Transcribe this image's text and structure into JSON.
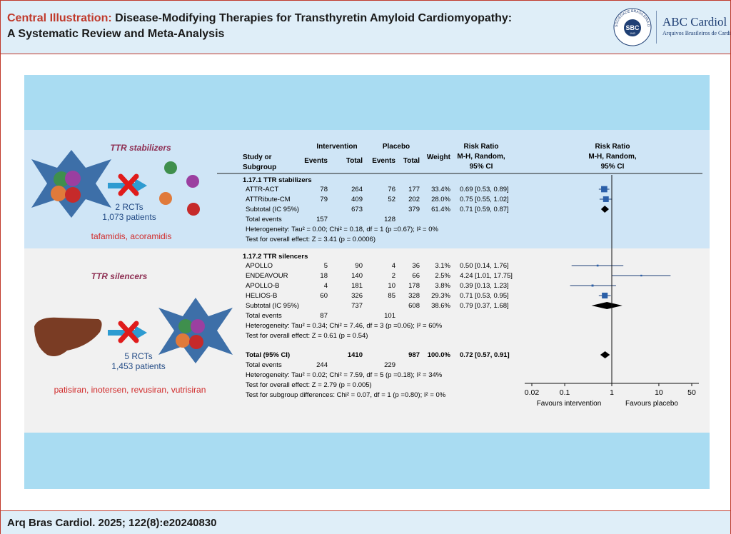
{
  "header": {
    "title_accent": "Central Illustration:",
    "title_line1": "Disease-Modifying Therapies for Transthyretin Amyloid Cardiomyopathy:",
    "title_line2": "A Systematic Review and Meta-Analysis",
    "logo_seal_text": "SBC",
    "logo_seal_ring": "SOCIEDADE BRASILEIRA DE CARDIOLOGIA",
    "logo_seal_year": "1943",
    "logo_title": "ABC Cardiol",
    "logo_subtitle": "Arquivos Brasileiros de Cardiologia"
  },
  "footer": {
    "citation": "Arq Bras Cardiol. 2025; 122(8):e20240830"
  },
  "left_panels": {
    "stabilizers": {
      "title": "TTR stabilizers",
      "rcts": "2 RCTs",
      "patients": "1,073 patients",
      "drugs": "tafamidis, acoramidis"
    },
    "silencers": {
      "title": "TTR silencers",
      "rcts": "5 RCTs",
      "patients": "1,453 patients",
      "drugs": "patisiran, inotersen, revusiran, vutrisiran"
    }
  },
  "colors": {
    "study_marker": "#2b5fa8",
    "diamond": "#000000",
    "accent_red": "#c0392b",
    "band_blue": "#a9dcf2"
  },
  "table_headers": {
    "study": "Study or",
    "study2": "Subgroup",
    "intervention": "Intervention",
    "placebo": "Placebo",
    "events": "Events",
    "total": "Total",
    "weight": "Weight",
    "rr1": "Risk Ratio",
    "rr2": "M-H, Random,",
    "rr3": "95% CI"
  },
  "chart_data": {
    "type": "forest",
    "x_scale": "log",
    "xlim": [
      0.02,
      50
    ],
    "x_ticks": [
      "0.02",
      "0.1",
      "1",
      "10",
      "50"
    ],
    "x_tick_values": [
      0.02,
      0.1,
      1,
      10,
      50
    ],
    "null_line": 1,
    "favours_left": "Favours intervention",
    "favours_right": "Favours placebo",
    "subgroups": [
      {
        "name": "1.17.1 TTR stabilizers",
        "studies": [
          {
            "name": "ATTR-ACT",
            "ie": "78",
            "it": "264",
            "pe": "76",
            "pt": "177",
            "weight": "33.4%",
            "ci_text": "0.69 [0.53, 0.89]",
            "rr": 0.69,
            "lo": 0.53,
            "hi": 0.89
          },
          {
            "name": "ATTRibute-CM",
            "ie": "79",
            "it": "409",
            "pe": "52",
            "pt": "202",
            "weight": "28.0%",
            "ci_text": "0.75 [0.55, 1.02]",
            "rr": 0.75,
            "lo": 0.55,
            "hi": 1.02
          }
        ],
        "subtotal": {
          "label": "Subtotal (IC 95%)",
          "it": "673",
          "pt": "379",
          "weight": "61.4%",
          "ci_text": "0.71 [0.59, 0.87]",
          "rr": 0.71,
          "lo": 0.59,
          "hi": 0.87
        },
        "total_events": {
          "label": "Total events",
          "ie": "157",
          "pe": "128"
        },
        "heterogeneity": "Heterogeneity: Tau² = 0.00; Chi² = 0.18, df = 1 (p =0.67); I² = 0%",
        "overall": "Test for overall effect: Z = 3.41 (p = 0.0006)"
      },
      {
        "name": "1.17.2 TTR silencers",
        "studies": [
          {
            "name": "APOLLO",
            "ie": "5",
            "it": "90",
            "pe": "4",
            "pt": "36",
            "weight": "3.1%",
            "ci_text": "0.50 [0.14, 1.76]",
            "rr": 0.5,
            "lo": 0.14,
            "hi": 1.76
          },
          {
            "name": "ENDEAVOUR",
            "ie": "18",
            "it": "140",
            "pe": "2",
            "pt": "66",
            "weight": "2.5%",
            "ci_text": "4.24 [1.01, 17.75]",
            "rr": 4.24,
            "lo": 1.01,
            "hi": 17.75
          },
          {
            "name": "APOLLO-B",
            "ie": "4",
            "it": "181",
            "pe": "10",
            "pt": "178",
            "weight": "3.8%",
            "ci_text": "0.39 [0.13, 1.23]",
            "rr": 0.39,
            "lo": 0.13,
            "hi": 1.23
          },
          {
            "name": "HELIOS-B",
            "ie": "60",
            "it": "326",
            "pe": "85",
            "pt": "328",
            "weight": "29.3%",
            "ci_text": "0.71 [0.53, 0.95]",
            "rr": 0.71,
            "lo": 0.53,
            "hi": 0.95
          }
        ],
        "subtotal": {
          "label": "Subtotal (IC 95%)",
          "it": "737",
          "pt": "608",
          "weight": "38.6%",
          "ci_text": "0.79 [0.37, 1.68]",
          "rr": 0.79,
          "lo": 0.37,
          "hi": 1.68
        },
        "total_events": {
          "label": "Total events",
          "ie": "87",
          "pe": "101"
        },
        "heterogeneity": "Heterogeneity: Tau² = 0.34; Chi² = 7.46, df = 3 (p =0.06); I² = 60%",
        "overall": "Test for overall effect: Z = 0.61 (p = 0.54)"
      }
    ],
    "total": {
      "label": "Total (95% CI)",
      "it": "1410",
      "pt": "987",
      "weight": "100.0%",
      "ci_text": "0.72 [0.57, 0.91]",
      "rr": 0.72,
      "lo": 0.57,
      "hi": 0.91
    },
    "total_events": {
      "label": "Total events",
      "ie": "244",
      "pe": "229"
    },
    "heterogeneity": "Heterogeneity: Tau² = 0.02; Chi² = 7.59, df = 5 (p =0.18); I² = 34%",
    "overall": "Test for overall effect: Z = 2.79 (p = 0.005)",
    "subgroup_diff": "Test for subgroup differences: Chi² = 0.07, df = 1 (p =0.80); I² = 0%"
  }
}
